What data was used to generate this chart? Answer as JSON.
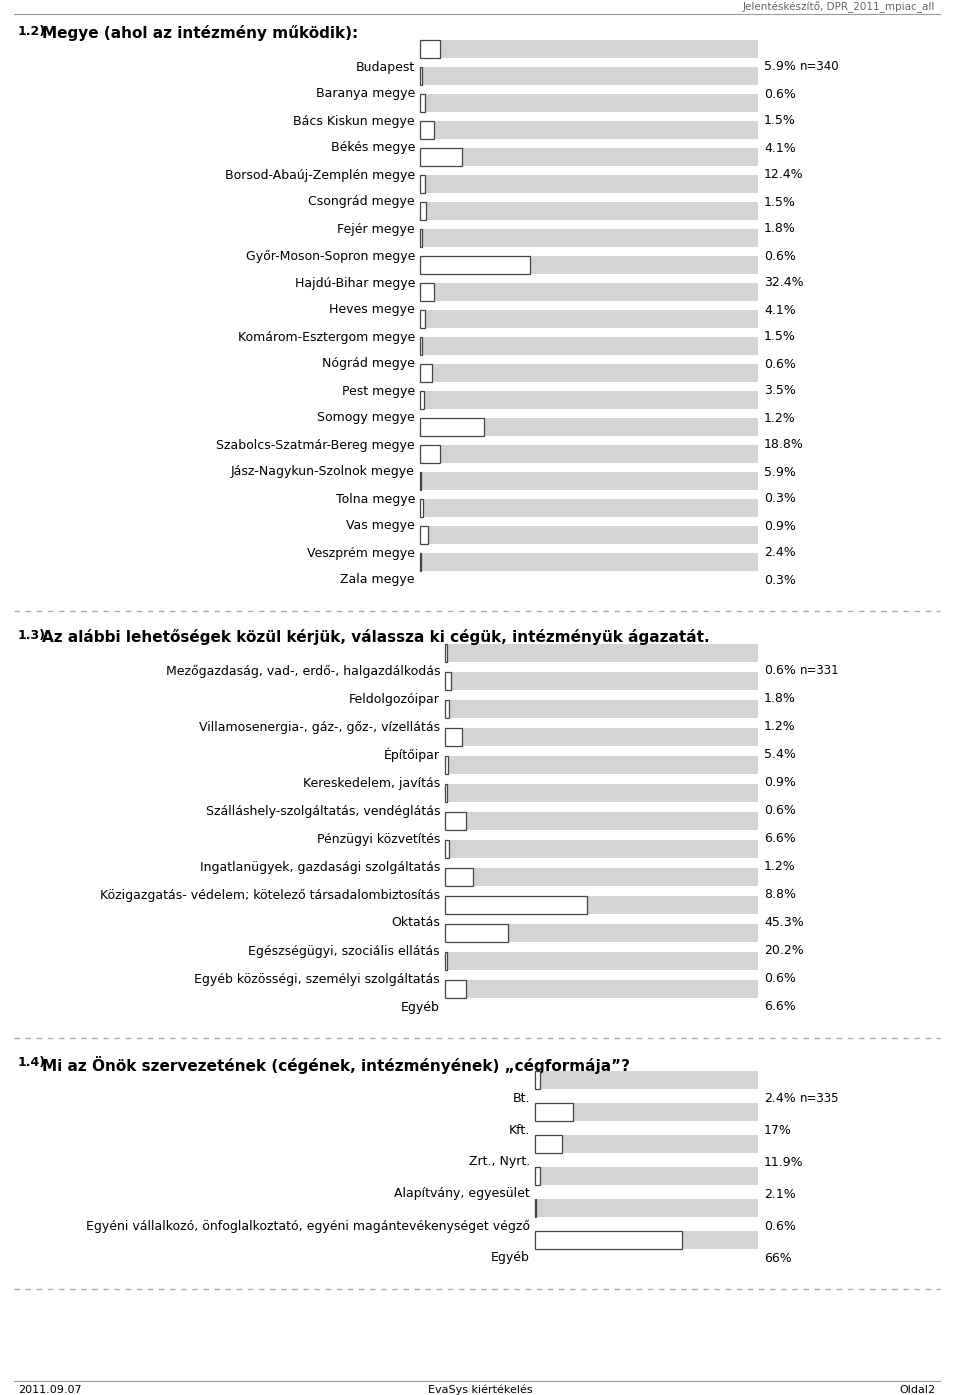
{
  "header_text": "Jelentéskészítő, DPR_2011_mpiac_all",
  "footer_left": "2011.09.07",
  "footer_center": "EvaSys kiértékelés",
  "footer_right": "Oldal2",
  "section1": {
    "prefix": "1.2)",
    "title": "Megye (ahol az intézmény működik):",
    "n_label": "n=340",
    "categories": [
      "Budapest",
      "Baranya megye",
      "Bács Kiskun megye",
      "Békés megye",
      "Borsod-Abaúj-Zemplén megye",
      "Csongrád megye",
      "Fejér megye",
      "Győr-Moson-Sopron megye",
      "Hajdú-Bihar megye",
      "Heves megye",
      "Komárom-Esztergom megye",
      "Nógrád megye",
      "Pest megye",
      "Somogy megye",
      "Szabolcs-Szatmár-Bereg megye",
      "Jász-Nagykun-Szolnok megye",
      "Tolna megye",
      "Vas megye",
      "Veszprém megye",
      "Zala megye"
    ],
    "values": [
      5.9,
      0.6,
      1.5,
      4.1,
      12.4,
      1.5,
      1.8,
      0.6,
      32.4,
      4.1,
      1.5,
      0.6,
      3.5,
      1.2,
      18.8,
      5.9,
      0.3,
      0.9,
      2.4,
      0.3
    ],
    "labels": [
      "5.9%",
      "0.6%",
      "1.5%",
      "4.1%",
      "12.4%",
      "1.5%",
      "1.8%",
      "0.6%",
      "32.4%",
      "4.1%",
      "1.5%",
      "0.6%",
      "3.5%",
      "1.2%",
      "18.8%",
      "5.9%",
      "0.3%",
      "0.9%",
      "2.4%",
      "0.3%"
    ]
  },
  "section2": {
    "prefix": "1.3)",
    "title": "Az alábbi lehetőségek közül kérjük, válassza ki cégük, intézményük ágazatát.",
    "n_label": "n=331",
    "categories": [
      "Mezőgazdaság, vad-, erdő-, halgazdálkodás",
      "Feldolgozóipar",
      "Villamosenergia-, gáz-, gőz-, vízellátás",
      "Építőipar",
      "Kereskedelem, javítás",
      "Szálláshely-szolgáltatás, vendéglátás",
      "Pénzügyi közvetítés",
      "Ingatlanügyek, gazdasági szolgáltatás",
      "Közigazgatás- védelem; kötelező társadalombiztosítás",
      "Oktatás",
      "Egészségügyi, szociális ellátás",
      "Egyéb közösségi, személyi szolgáltatás",
      "Egyéb"
    ],
    "values": [
      0.6,
      1.8,
      1.2,
      5.4,
      0.9,
      0.6,
      6.6,
      1.2,
      8.8,
      45.3,
      20.2,
      0.6,
      6.6
    ],
    "labels": [
      "0.6%",
      "1.8%",
      "1.2%",
      "5.4%",
      "0.9%",
      "0.6%",
      "6.6%",
      "1.2%",
      "8.8%",
      "45.3%",
      "20.2%",
      "0.6%",
      "6.6%"
    ]
  },
  "section3": {
    "prefix": "1.4)",
    "title": "Mi az Önök szervezetének (cégének, intézményének) „cégformája”?",
    "n_label": "n=335",
    "categories": [
      "Bt.",
      "Kft.",
      "Zrt., Nyrt.",
      "Alapítvány, egyesület",
      "Egyéni vállalkozó, önfoglalkoztató, egyéni magántevékenységet végző",
      "Egyéb"
    ],
    "values": [
      2.4,
      17.0,
      11.9,
      2.1,
      0.6,
      66.0
    ],
    "labels": [
      "2.4%",
      "17%",
      "11.9%",
      "2.1%",
      "0.6%",
      "66%"
    ]
  },
  "bar_bg_color": "#d4d4d4",
  "bar_fg_color": "#ffffff",
  "bar_border_color": "#444444",
  "label_fontsize": 9,
  "category_fontsize": 9,
  "title_fontsize": 11,
  "n_label_fontsize": 8.5
}
